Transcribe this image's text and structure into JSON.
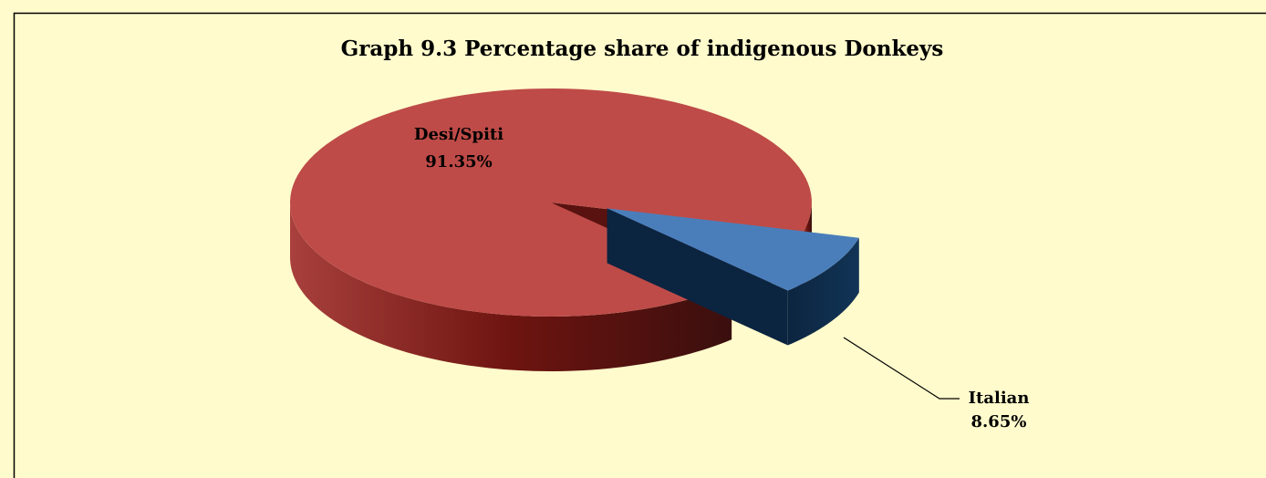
{
  "chart_data": {
    "type": "pie",
    "title": "Graph 9.3 Percentage share of indigenous Donkeys",
    "categories": [
      "Desi/Spiti",
      "Italian"
    ],
    "values": [
      91.35,
      8.65
    ],
    "value_labels": [
      "91.35%",
      "8.65%"
    ],
    "colors": [
      "#be4b48",
      "#4a7ebb"
    ]
  }
}
